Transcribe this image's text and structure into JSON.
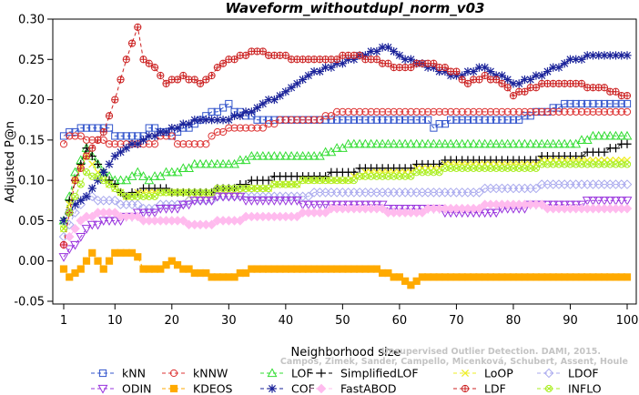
{
  "chart_data": {
    "type": "line",
    "title": "Waveform_withoutdupl_norm_v03",
    "xlabel": "Neighborhood size",
    "ylabel": "Adjusted P@n",
    "xlim": [
      1,
      100
    ],
    "ylim": [
      -0.05,
      0.3
    ],
    "x_ticks": [
      1,
      10,
      20,
      30,
      40,
      50,
      60,
      70,
      80,
      90,
      100
    ],
    "y_ticks": [
      -0.05,
      0.0,
      0.05,
      0.1,
      0.15,
      0.2,
      0.25,
      0.3
    ],
    "y_tick_labels": [
      "-0.05",
      "0.00",
      "0.05",
      "0.10",
      "0.15",
      "0.20",
      "0.25",
      "0.30"
    ],
    "grid": false,
    "legend_position": "bottom",
    "citation": [
      "Campos, Zimek, Sander, Campello, Micenková, Schubert, Assent, Houle",
      "Unsupervised Outlier Detection. DAMI, 2015."
    ],
    "series": [
      {
        "name": "kNN",
        "color": "#3355cc",
        "marker": "square",
        "keypoints": [
          [
            1,
            0.155
          ],
          [
            5,
            0.165
          ],
          [
            9,
            0.165
          ],
          [
            10,
            0.155
          ],
          [
            15,
            0.155
          ],
          [
            16,
            0.165
          ],
          [
            20,
            0.155
          ],
          [
            25,
            0.175
          ],
          [
            30,
            0.195
          ],
          [
            31,
            0.185
          ],
          [
            35,
            0.175
          ],
          [
            45,
            0.175
          ],
          [
            50,
            0.175
          ],
          [
            55,
            0.175
          ],
          [
            65,
            0.175
          ],
          [
            66,
            0.165
          ],
          [
            70,
            0.175
          ],
          [
            80,
            0.175
          ],
          [
            85,
            0.185
          ],
          [
            90,
            0.195
          ],
          [
            100,
            0.195
          ]
        ]
      },
      {
        "name": "kNNW",
        "color": "#dd3333",
        "marker": "circle",
        "keypoints": [
          [
            1,
            0.145
          ],
          [
            2,
            0.155
          ],
          [
            10,
            0.145
          ],
          [
            17,
            0.145
          ],
          [
            18,
            0.155
          ],
          [
            20,
            0.155
          ],
          [
            21,
            0.145
          ],
          [
            26,
            0.145
          ],
          [
            27,
            0.155
          ],
          [
            30,
            0.165
          ],
          [
            35,
            0.165
          ],
          [
            40,
            0.175
          ],
          [
            45,
            0.175
          ],
          [
            50,
            0.185
          ],
          [
            60,
            0.185
          ],
          [
            70,
            0.185
          ],
          [
            80,
            0.185
          ],
          [
            90,
            0.185
          ],
          [
            100,
            0.185
          ]
        ]
      },
      {
        "name": "LOF",
        "color": "#33dd33",
        "marker": "triangle-up",
        "keypoints": [
          [
            1,
            0.05
          ],
          [
            3,
            0.11
          ],
          [
            5,
            0.14
          ],
          [
            7,
            0.12
          ],
          [
            8,
            0.11
          ],
          [
            10,
            0.1
          ],
          [
            12,
            0.1
          ],
          [
            14,
            0.11
          ],
          [
            16,
            0.1
          ],
          [
            20,
            0.11
          ],
          [
            25,
            0.12
          ],
          [
            30,
            0.12
          ],
          [
            35,
            0.13
          ],
          [
            40,
            0.13
          ],
          [
            45,
            0.13
          ],
          [
            50,
            0.14
          ],
          [
            52,
            0.145
          ],
          [
            60,
            0.145
          ],
          [
            70,
            0.145
          ],
          [
            80,
            0.145
          ],
          [
            90,
            0.145
          ],
          [
            95,
            0.155
          ],
          [
            100,
            0.155
          ]
        ]
      },
      {
        "name": "SimplifiedLOF",
        "color": "#000000",
        "marker": "plus",
        "keypoints": [
          [
            1,
            0.05
          ],
          [
            3,
            0.1
          ],
          [
            5,
            0.14
          ],
          [
            7,
            0.12
          ],
          [
            9,
            0.1
          ],
          [
            12,
            0.08
          ],
          [
            15,
            0.09
          ],
          [
            18,
            0.09
          ],
          [
            20,
            0.085
          ],
          [
            25,
            0.085
          ],
          [
            30,
            0.09
          ],
          [
            35,
            0.1
          ],
          [
            40,
            0.105
          ],
          [
            45,
            0.105
          ],
          [
            50,
            0.11
          ],
          [
            55,
            0.115
          ],
          [
            60,
            0.115
          ],
          [
            65,
            0.12
          ],
          [
            70,
            0.125
          ],
          [
            80,
            0.125
          ],
          [
            90,
            0.13
          ],
          [
            95,
            0.135
          ],
          [
            100,
            0.145
          ]
        ]
      },
      {
        "name": "LoOP",
        "color": "#eeee22",
        "marker": "cross",
        "keypoints": [
          [
            1,
            0.04
          ],
          [
            3,
            0.1
          ],
          [
            5,
            0.13
          ],
          [
            8,
            0.1
          ],
          [
            12,
            0.08
          ],
          [
            16,
            0.085
          ],
          [
            20,
            0.085
          ],
          [
            25,
            0.08
          ],
          [
            30,
            0.085
          ],
          [
            35,
            0.09
          ],
          [
            40,
            0.095
          ],
          [
            45,
            0.1
          ],
          [
            50,
            0.1
          ],
          [
            55,
            0.11
          ],
          [
            60,
            0.11
          ],
          [
            65,
            0.115
          ],
          [
            70,
            0.12
          ],
          [
            80,
            0.12
          ],
          [
            90,
            0.125
          ],
          [
            100,
            0.125
          ]
        ]
      },
      {
        "name": "LDOF",
        "color": "#aaaaee",
        "marker": "diamond",
        "keypoints": [
          [
            1,
            0.03
          ],
          [
            3,
            0.06
          ],
          [
            5,
            0.08
          ],
          [
            8,
            0.075
          ],
          [
            12,
            0.07
          ],
          [
            16,
            0.065
          ],
          [
            20,
            0.07
          ],
          [
            25,
            0.075
          ],
          [
            30,
            0.08
          ],
          [
            35,
            0.08
          ],
          [
            40,
            0.08
          ],
          [
            50,
            0.085
          ],
          [
            60,
            0.085
          ],
          [
            70,
            0.085
          ],
          [
            80,
            0.09
          ],
          [
            90,
            0.095
          ],
          [
            100,
            0.095
          ]
        ]
      },
      {
        "name": "ODIN",
        "color": "#9933dd",
        "marker": "triangle-down",
        "keypoints": [
          [
            1,
            0.005
          ],
          [
            3,
            0.02
          ],
          [
            5,
            0.04
          ],
          [
            8,
            0.05
          ],
          [
            10,
            0.05
          ],
          [
            15,
            0.06
          ],
          [
            20,
            0.065
          ],
          [
            25,
            0.075
          ],
          [
            30,
            0.08
          ],
          [
            35,
            0.075
          ],
          [
            40,
            0.075
          ],
          [
            45,
            0.07
          ],
          [
            50,
            0.07
          ],
          [
            55,
            0.07
          ],
          [
            60,
            0.065
          ],
          [
            65,
            0.065
          ],
          [
            70,
            0.06
          ],
          [
            75,
            0.06
          ],
          [
            80,
            0.065
          ],
          [
            85,
            0.07
          ],
          [
            90,
            0.07
          ],
          [
            95,
            0.075
          ],
          [
            100,
            0.075
          ]
        ]
      },
      {
        "name": "COF",
        "color": "#1a2299",
        "marker": "star",
        "keypoints": [
          [
            1,
            0.05
          ],
          [
            3,
            0.07
          ],
          [
            5,
            0.08
          ],
          [
            8,
            0.11
          ],
          [
            10,
            0.13
          ],
          [
            12,
            0.14
          ],
          [
            15,
            0.15
          ],
          [
            20,
            0.165
          ],
          [
            25,
            0.175
          ],
          [
            30,
            0.175
          ],
          [
            35,
            0.19
          ],
          [
            40,
            0.21
          ],
          [
            45,
            0.235
          ],
          [
            50,
            0.245
          ],
          [
            55,
            0.26
          ],
          [
            58,
            0.265
          ],
          [
            60,
            0.255
          ],
          [
            65,
            0.24
          ],
          [
            70,
            0.23
          ],
          [
            75,
            0.24
          ],
          [
            80,
            0.22
          ],
          [
            85,
            0.23
          ],
          [
            90,
            0.25
          ],
          [
            95,
            0.255
          ],
          [
            100,
            0.255
          ]
        ]
      },
      {
        "name": "FastABOD",
        "color": "#ffbbee",
        "marker": "diamond-filled",
        "keypoints": [
          [
            1,
            0.02
          ],
          [
            3,
            0.04
          ],
          [
            5,
            0.055
          ],
          [
            8,
            0.06
          ],
          [
            12,
            0.055
          ],
          [
            16,
            0.05
          ],
          [
            20,
            0.05
          ],
          [
            25,
            0.045
          ],
          [
            30,
            0.05
          ],
          [
            35,
            0.055
          ],
          [
            40,
            0.055
          ],
          [
            45,
            0.06
          ],
          [
            50,
            0.065
          ],
          [
            55,
            0.065
          ],
          [
            60,
            0.06
          ],
          [
            70,
            0.065
          ],
          [
            80,
            0.07
          ],
          [
            90,
            0.065
          ],
          [
            100,
            0.065
          ]
        ]
      },
      {
        "name": "KDEOS",
        "color": "#ffaa00",
        "marker": "square-filled",
        "keypoints": [
          [
            1,
            -0.01
          ],
          [
            2,
            -0.02
          ],
          [
            4,
            -0.01
          ],
          [
            6,
            0.01
          ],
          [
            8,
            -0.01
          ],
          [
            10,
            0.01
          ],
          [
            12,
            0.01
          ],
          [
            14,
            0.005
          ],
          [
            15,
            -0.01
          ],
          [
            18,
            -0.01
          ],
          [
            20,
            0.0
          ],
          [
            22,
            -0.01
          ],
          [
            25,
            -0.015
          ],
          [
            28,
            -0.02
          ],
          [
            30,
            -0.02
          ],
          [
            35,
            -0.01
          ],
          [
            40,
            -0.01
          ],
          [
            45,
            -0.01
          ],
          [
            50,
            -0.01
          ],
          [
            55,
            -0.01
          ],
          [
            60,
            -0.02
          ],
          [
            62,
            -0.03
          ],
          [
            64,
            -0.02
          ],
          [
            70,
            -0.02
          ],
          [
            80,
            -0.02
          ],
          [
            90,
            -0.02
          ],
          [
            100,
            -0.02
          ]
        ]
      },
      {
        "name": "LDF",
        "color": "#cc2222",
        "marker": "circle-plus",
        "keypoints": [
          [
            1,
            0.02
          ],
          [
            3,
            0.1
          ],
          [
            5,
            0.13
          ],
          [
            8,
            0.16
          ],
          [
            10,
            0.2
          ],
          [
            12,
            0.25
          ],
          [
            14,
            0.29
          ],
          [
            15,
            0.25
          ],
          [
            17,
            0.24
          ],
          [
            19,
            0.22
          ],
          [
            22,
            0.23
          ],
          [
            25,
            0.22
          ],
          [
            30,
            0.25
          ],
          [
            35,
            0.26
          ],
          [
            38,
            0.255
          ],
          [
            42,
            0.25
          ],
          [
            48,
            0.25
          ],
          [
            52,
            0.255
          ],
          [
            55,
            0.25
          ],
          [
            60,
            0.24
          ],
          [
            65,
            0.245
          ],
          [
            70,
            0.235
          ],
          [
            72,
            0.22
          ],
          [
            75,
            0.23
          ],
          [
            78,
            0.22
          ],
          [
            80,
            0.205
          ],
          [
            82,
            0.21
          ],
          [
            85,
            0.22
          ],
          [
            90,
            0.22
          ],
          [
            95,
            0.215
          ],
          [
            100,
            0.205
          ]
        ]
      },
      {
        "name": "INFLO",
        "color": "#aaee22",
        "marker": "circle-x",
        "keypoints": [
          [
            1,
            0.04
          ],
          [
            3,
            0.08
          ],
          [
            5,
            0.11
          ],
          [
            8,
            0.1
          ],
          [
            12,
            0.08
          ],
          [
            16,
            0.08
          ],
          [
            20,
            0.085
          ],
          [
            25,
            0.085
          ],
          [
            30,
            0.09
          ],
          [
            35,
            0.09
          ],
          [
            40,
            0.095
          ],
          [
            45,
            0.1
          ],
          [
            50,
            0.1
          ],
          [
            55,
            0.105
          ],
          [
            60,
            0.105
          ],
          [
            65,
            0.11
          ],
          [
            70,
            0.115
          ],
          [
            80,
            0.115
          ],
          [
            90,
            0.12
          ],
          [
            100,
            0.12
          ]
        ]
      }
    ]
  }
}
